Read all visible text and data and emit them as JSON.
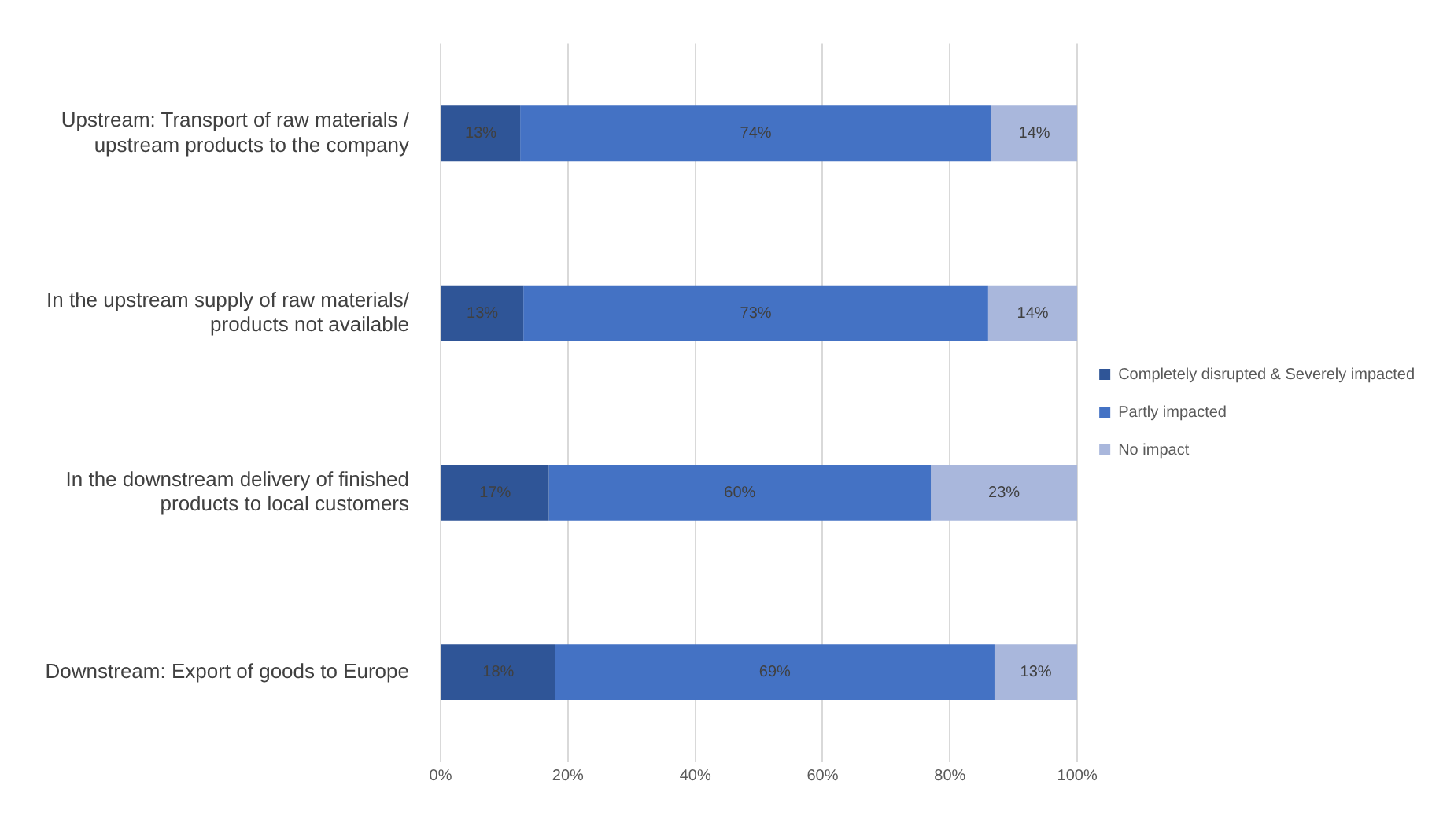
{
  "chart_data": {
    "type": "bar",
    "orientation": "horizontal",
    "stacked": true,
    "categories": [
      "Upstream: Transport of raw materials / upstream products to the company",
      "In the upstream supply of raw materials/ products not available",
      "In the downstream delivery of finished products to local customers",
      "Downstream: Export of goods to Europe"
    ],
    "series": [
      {
        "name": "Completely disrupted & Severely impacted",
        "color": "#2f5597",
        "values": [
          12.5,
          13,
          17,
          18
        ],
        "value_labels": [
          "13%",
          "13%",
          "17%",
          "18%"
        ]
      },
      {
        "name": "Partly impacted",
        "color": "#4472c4",
        "values": [
          74,
          73,
          60,
          69
        ],
        "value_labels": [
          "74%",
          "73%",
          "60%",
          "69%"
        ]
      },
      {
        "name": "No impact",
        "color": "#a9b7dc",
        "values": [
          13.5,
          14,
          23,
          13
        ],
        "value_labels": [
          "14%",
          "14%",
          "23%",
          "13%"
        ]
      }
    ],
    "xlim": [
      0,
      100
    ],
    "xticks": [
      {
        "value": 0,
        "label": "0%"
      },
      {
        "value": 20,
        "label": "20%"
      },
      {
        "value": 40,
        "label": "40%"
      },
      {
        "value": 60,
        "label": "60%"
      },
      {
        "value": 80,
        "label": "80%"
      },
      {
        "value": 100,
        "label": "100%"
      }
    ],
    "grid": "x",
    "legend": "right"
  }
}
